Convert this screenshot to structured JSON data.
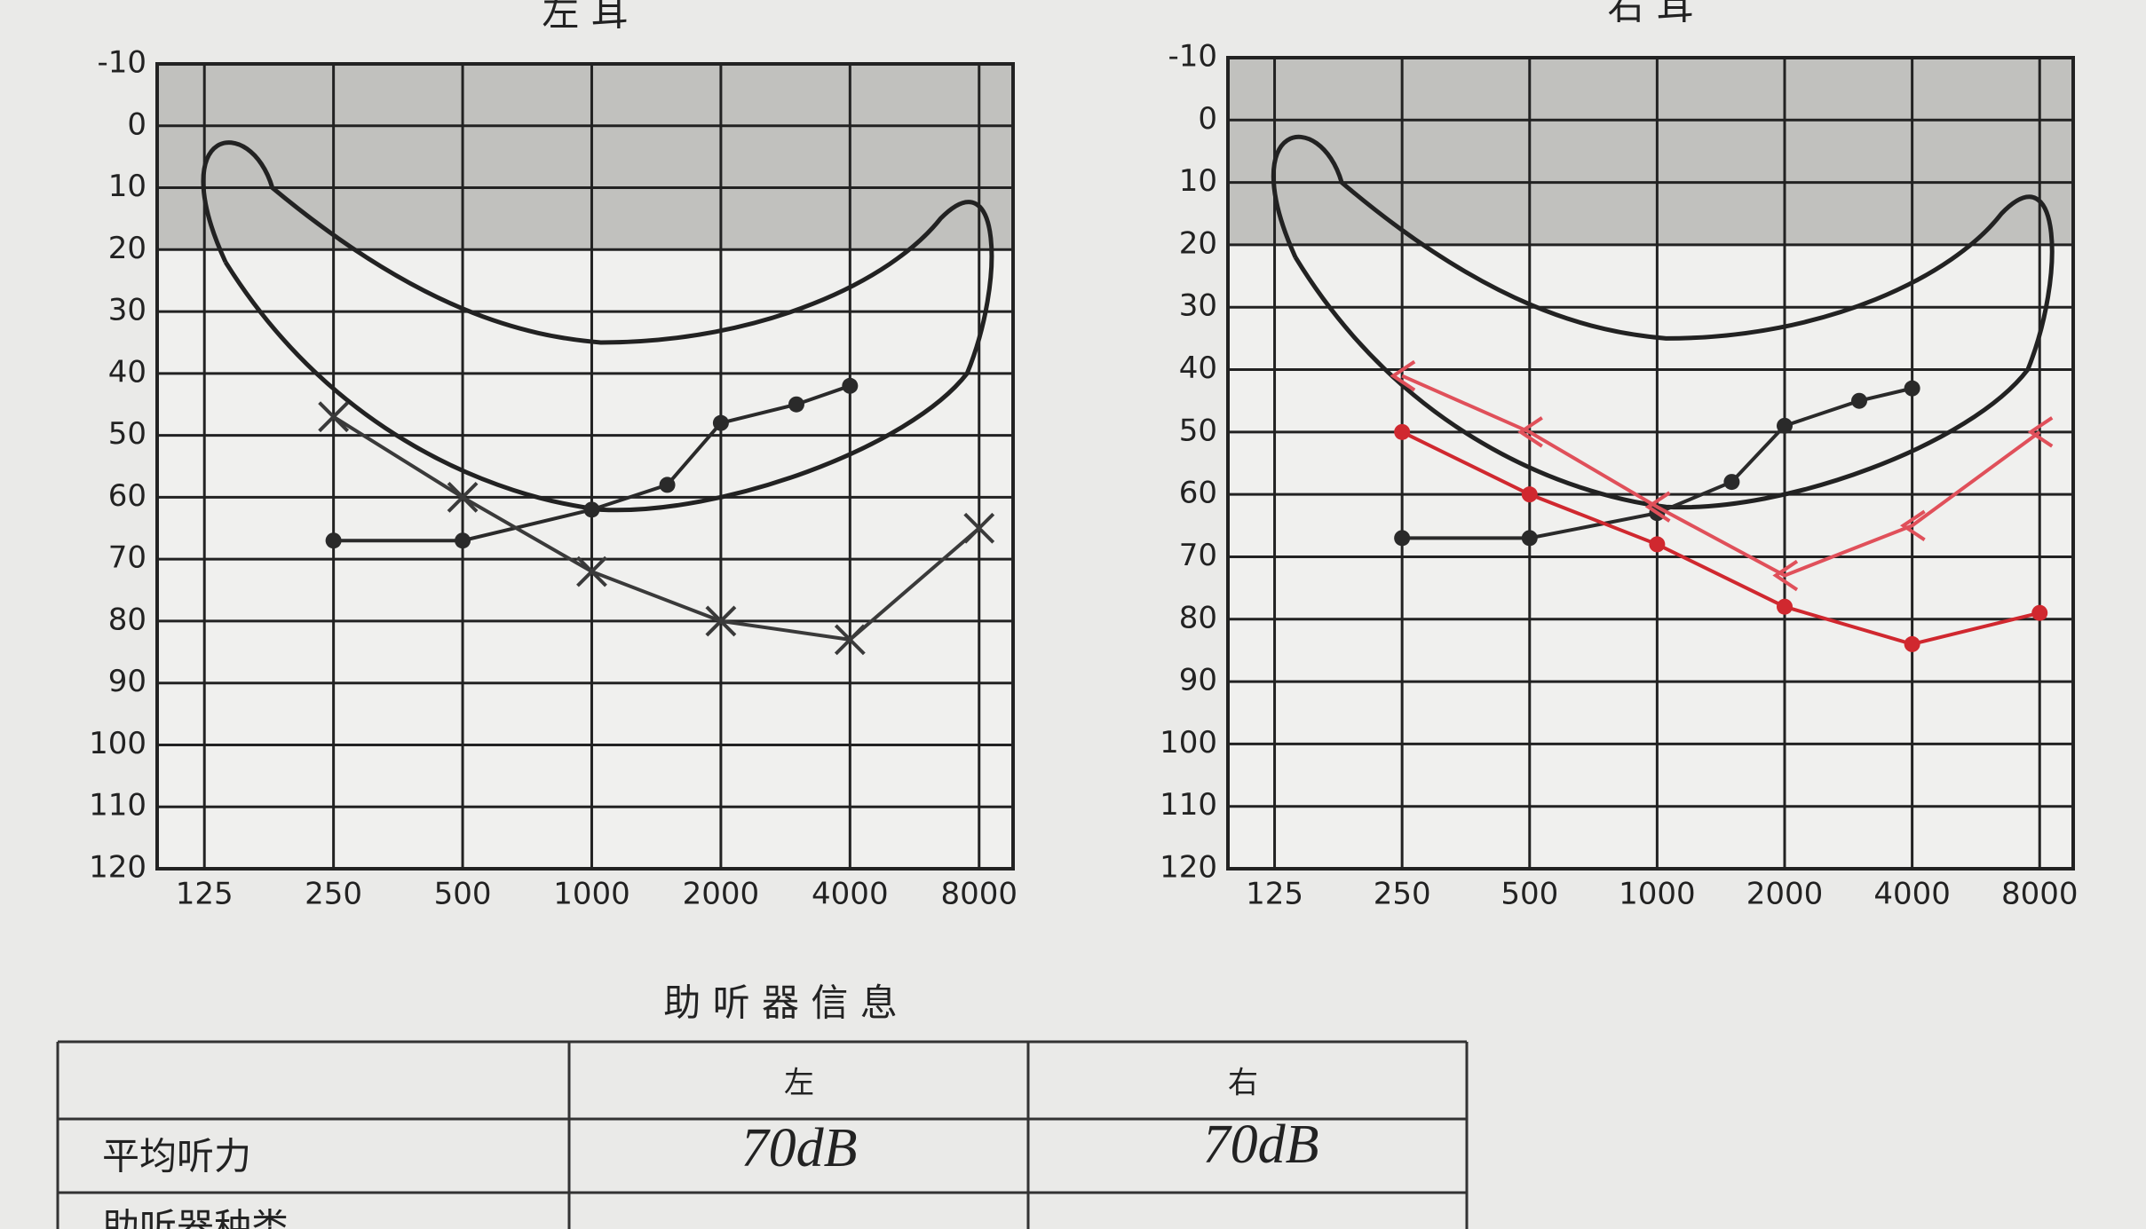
{
  "chart_data": [
    {
      "type": "line",
      "title": "左 耳",
      "xscale": "log",
      "grid": true,
      "shade": [
        -10,
        20
      ],
      "xlim": [
        97,
        9600
      ],
      "ylim": [
        120,
        -10
      ],
      "xticks": [
        125,
        250,
        500,
        1000,
        2000,
        4000,
        8000
      ],
      "yticks": [
        -10,
        0,
        10,
        20,
        30,
        40,
        50,
        60,
        70,
        80,
        90,
        100,
        110,
        120
      ],
      "series": [
        {
          "color": "#2a2a2a",
          "marker": "o",
          "x": [
            250,
            500,
            1000,
            1500,
            2000,
            3000,
            4000
          ],
          "values": [
            67,
            67,
            62,
            58,
            48,
            45,
            42
          ]
        },
        {
          "color": "#3a3a3a",
          "marker": "x",
          "x": [
            250,
            500,
            1000,
            2000,
            4000,
            8000
          ],
          "values": [
            47,
            60,
            72,
            80,
            83,
            65
          ]
        }
      ]
    },
    {
      "type": "line",
      "title": "右 耳",
      "xscale": "log",
      "grid": true,
      "shade": [
        -10,
        20
      ],
      "xlim": [
        97,
        9600
      ],
      "ylim": [
        120,
        -10
      ],
      "xticks": [
        125,
        250,
        500,
        1000,
        2000,
        4000,
        8000
      ],
      "yticks": [
        -10,
        0,
        10,
        20,
        30,
        40,
        50,
        60,
        70,
        80,
        90,
        100,
        110,
        120
      ],
      "series": [
        {
          "color": "#2a2a2a",
          "marker": "o",
          "x": [
            250,
            500,
            1000,
            1500,
            2000,
            3000,
            4000
          ],
          "values": [
            67,
            67,
            63,
            58,
            49,
            45,
            43
          ]
        },
        {
          "color": "#d0282f",
          "marker": "o",
          "x": [
            250,
            500,
            1000,
            2000,
            4000,
            8000
          ],
          "values": [
            50,
            60,
            68,
            78,
            84,
            79
          ]
        },
        {
          "color": "#e0505a",
          "marker": "<",
          "x": [
            250,
            500,
            1000,
            2000,
            4000,
            8000
          ],
          "values": [
            41,
            50,
            62,
            73,
            65,
            50
          ]
        }
      ]
    }
  ],
  "section_title": "助 听 器 信 息",
  "table": {
    "header": [
      "左",
      "右"
    ],
    "rows": [
      [
        "平均听力",
        "70dB",
        "70dB"
      ],
      [
        "助听器种类"
      ]
    ]
  }
}
